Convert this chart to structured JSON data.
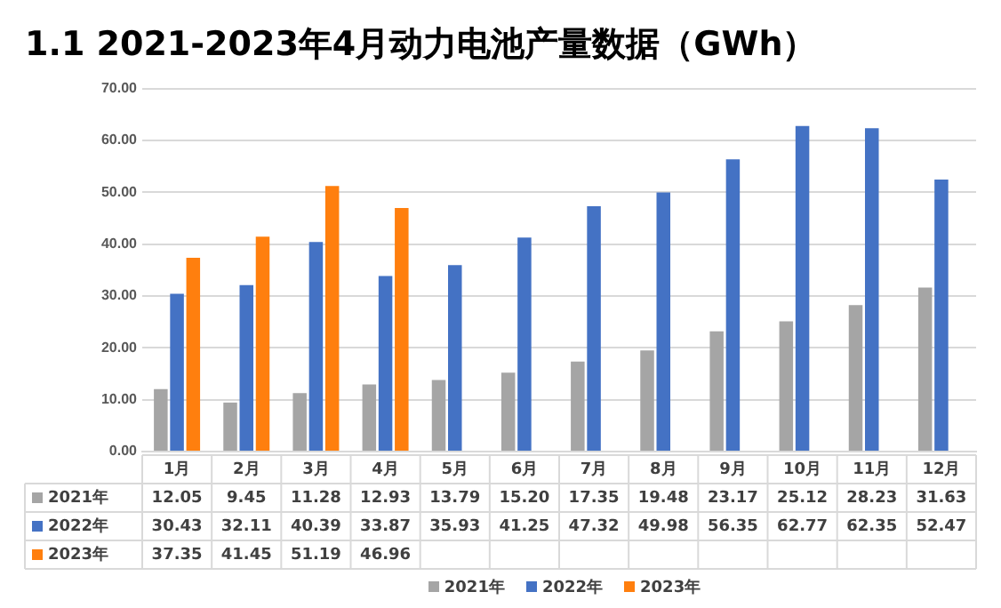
{
  "chart_data": {
    "type": "bar",
    "title": "1.1 2021-2023年4月动力电池产量数据（GWh）",
    "categories": [
      "1月",
      "2月",
      "3月",
      "4月",
      "5月",
      "6月",
      "7月",
      "8月",
      "9月",
      "10月",
      "11月",
      "12月"
    ],
    "series": [
      {
        "name": "2021年",
        "color": "#a5a5a5",
        "values": [
          12.05,
          9.45,
          11.28,
          12.93,
          13.79,
          15.2,
          17.35,
          19.48,
          23.17,
          25.12,
          28.23,
          31.63
        ],
        "value_labels": [
          "12.05",
          "9.45",
          "11.28",
          "12.93",
          "13.79",
          "15.20",
          "17.35",
          "19.48",
          "23.17",
          "25.12",
          "28.23",
          "31.63"
        ]
      },
      {
        "name": "2022年",
        "color": "#4472c4",
        "values": [
          30.43,
          32.11,
          40.39,
          33.87,
          35.93,
          41.25,
          47.32,
          49.98,
          56.35,
          62.77,
          62.35,
          52.47
        ],
        "value_labels": [
          "30.43",
          "32.11",
          "40.39",
          "33.87",
          "35.93",
          "41.25",
          "47.32",
          "49.98",
          "56.35",
          "62.77",
          "62.35",
          "52.47"
        ]
      },
      {
        "name": "2023年",
        "color": "#ff7f0e",
        "values": [
          37.35,
          41.45,
          51.19,
          46.96,
          null,
          null,
          null,
          null,
          null,
          null,
          null,
          null
        ],
        "value_labels": [
          "37.35",
          "41.45",
          "51.19",
          "46.96",
          null,
          null,
          null,
          null,
          null,
          null,
          null,
          null
        ]
      }
    ],
    "ylim": [
      0,
      70
    ],
    "yticks": [
      {
        "value": 0,
        "label": "0.00"
      },
      {
        "value": 10,
        "label": "10.00"
      },
      {
        "value": 20,
        "label": "20.00"
      },
      {
        "value": 30,
        "label": "30.00"
      },
      {
        "value": 40,
        "label": "40.00"
      },
      {
        "value": 50,
        "label": "50.00"
      },
      {
        "value": 60,
        "label": "60.00"
      },
      {
        "value": 70,
        "label": "70.00"
      }
    ],
    "grid": "y",
    "legend": "bottom"
  }
}
